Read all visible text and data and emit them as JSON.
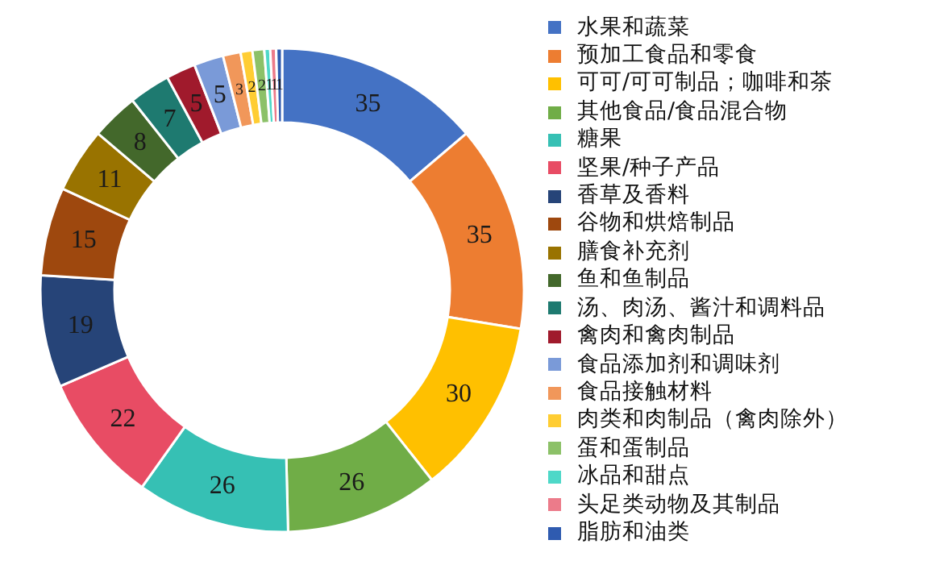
{
  "chart_data": {
    "type": "donut",
    "categories": [
      "水果和蔬菜",
      "预加工食品和零食",
      "可可/可可制品；咖啡和茶",
      "其他食品/食品混合物",
      "糖果",
      "坚果/种子产品",
      "香草及香料",
      "谷物和烘焙制品",
      "膳食补充剂",
      "鱼和鱼制品",
      "汤、肉汤、酱汁和调料品",
      "禽肉和禽肉制品",
      "食品添加剂和调味剂",
      "食品接触材料",
      "肉类和肉制品（禽肉除外）",
      "蛋和蛋制品",
      "冰品和甜点",
      "头足类动物及其制品",
      "脂肪和油类"
    ],
    "values": [
      35,
      35,
      30,
      26,
      26,
      22,
      19,
      15,
      11,
      8,
      7,
      5,
      5,
      3,
      2,
      2,
      1,
      1,
      1
    ],
    "colors": [
      "#4472c4",
      "#ed7d31",
      "#ffc000",
      "#70ad47",
      "#36c0b4",
      "#e84c64",
      "#264478",
      "#9e480e",
      "#997300",
      "#43682b",
      "#1e7a70",
      "#a01a2c",
      "#7a9ad8",
      "#f1975a",
      "#ffcd33",
      "#8cc168",
      "#4ed8c8",
      "#ec7b8a",
      "#2f5bb0"
    ],
    "data_labels": true,
    "legend": "right"
  }
}
